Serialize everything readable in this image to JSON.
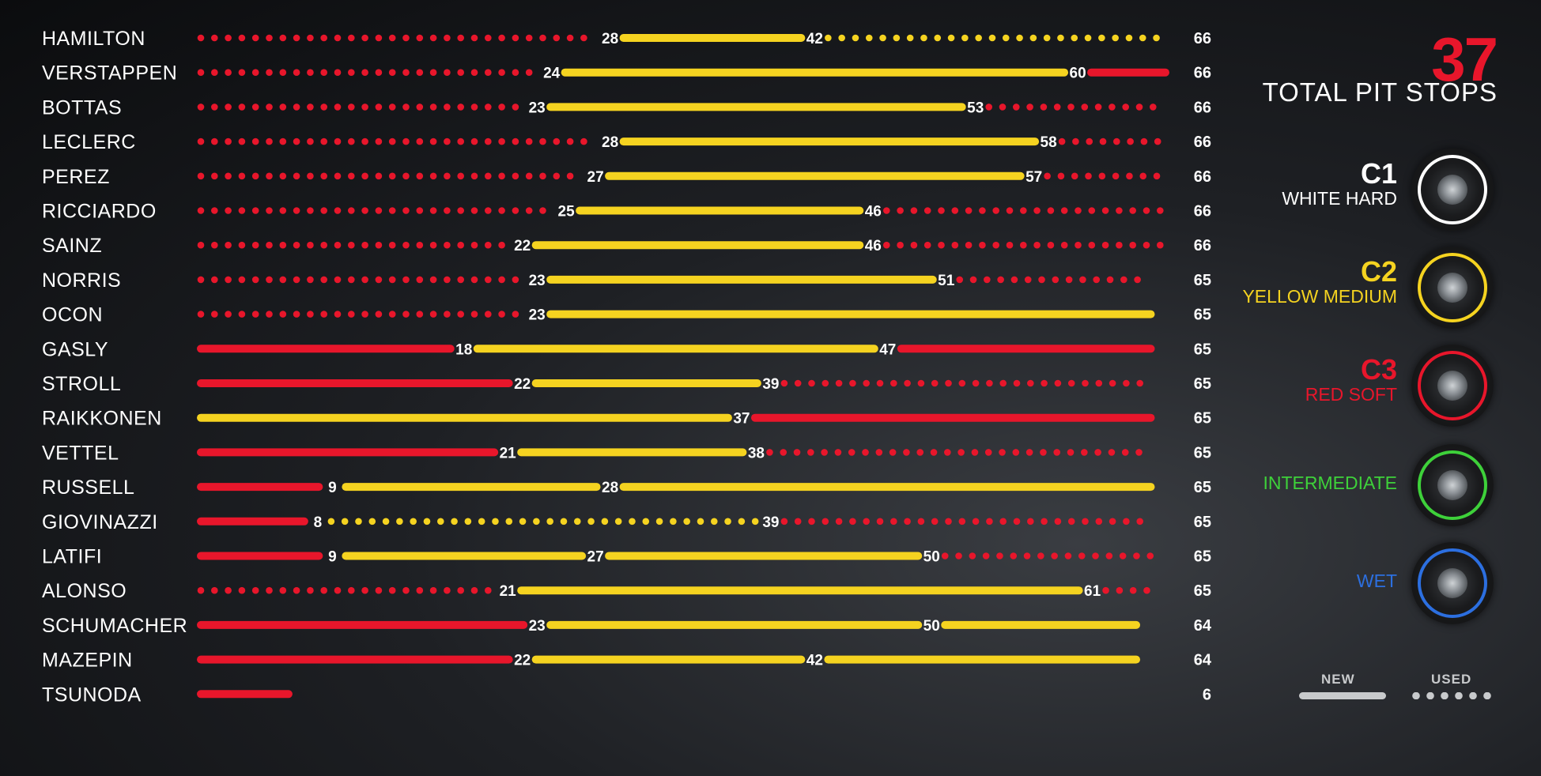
{
  "summary": {
    "total_pit_stops": "37",
    "total_label": "TOTAL PIT STOPS"
  },
  "compounds": [
    {
      "code": "C1",
      "name": "WHITE HARD",
      "color": "#ffffff",
      "icon": "white-hard-tyre-icon"
    },
    {
      "code": "C2",
      "name": "YELLOW MEDIUM",
      "color": "#f5d320",
      "icon": "yellow-medium-tyre-icon"
    },
    {
      "code": "C3",
      "name": "RED SOFT",
      "color": "#e8162b",
      "icon": "red-soft-tyre-icon"
    },
    {
      "code": "",
      "name": "INTERMEDIATE",
      "color": "#3ed13a",
      "icon": "green-intermediate-tyre-icon"
    },
    {
      "code": "",
      "name": "WET",
      "color": "#2c6fe0",
      "icon": "blue-wet-tyre-icon"
    }
  ],
  "legend": {
    "new_label": "NEW",
    "used_label": "USED"
  },
  "colors": {
    "red": "#e8162b",
    "yellow": "#f5d320",
    "white": "#ffffff"
  },
  "chart_data": {
    "type": "bar",
    "orientation": "horizontal-stacked-stints",
    "x_unit": "lap",
    "xlim": [
      0,
      66
    ],
    "drivers": [
      {
        "name": "HAMILTON",
        "total": 66,
        "stints": [
          {
            "compound": "red",
            "condition": "used",
            "start": 0,
            "end": 28
          },
          {
            "compound": "yellow",
            "condition": "new",
            "start": 28,
            "end": 42
          },
          {
            "compound": "yellow",
            "condition": "used",
            "start": 42,
            "end": 66
          }
        ]
      },
      {
        "name": "VERSTAPPEN",
        "total": 66,
        "stints": [
          {
            "compound": "red",
            "condition": "used",
            "start": 0,
            "end": 24
          },
          {
            "compound": "yellow",
            "condition": "new",
            "start": 24,
            "end": 60
          },
          {
            "compound": "red",
            "condition": "new",
            "start": 60,
            "end": 66
          }
        ]
      },
      {
        "name": "BOTTAS",
        "total": 66,
        "stints": [
          {
            "compound": "red",
            "condition": "used",
            "start": 0,
            "end": 23
          },
          {
            "compound": "yellow",
            "condition": "new",
            "start": 23,
            "end": 53
          },
          {
            "compound": "red",
            "condition": "used",
            "start": 53,
            "end": 66
          }
        ]
      },
      {
        "name": "LECLERC",
        "total": 66,
        "stints": [
          {
            "compound": "red",
            "condition": "used",
            "start": 0,
            "end": 28
          },
          {
            "compound": "yellow",
            "condition": "new",
            "start": 28,
            "end": 58
          },
          {
            "compound": "red",
            "condition": "used",
            "start": 58,
            "end": 66
          }
        ]
      },
      {
        "name": "PEREZ",
        "total": 66,
        "stints": [
          {
            "compound": "red",
            "condition": "used",
            "start": 0,
            "end": 27
          },
          {
            "compound": "yellow",
            "condition": "new",
            "start": 27,
            "end": 57
          },
          {
            "compound": "red",
            "condition": "used",
            "start": 57,
            "end": 66
          }
        ]
      },
      {
        "name": "RICCIARDO",
        "total": 66,
        "stints": [
          {
            "compound": "red",
            "condition": "used",
            "start": 0,
            "end": 25
          },
          {
            "compound": "yellow",
            "condition": "new",
            "start": 25,
            "end": 46
          },
          {
            "compound": "red",
            "condition": "used",
            "start": 46,
            "end": 66
          }
        ]
      },
      {
        "name": "SAINZ",
        "total": 66,
        "stints": [
          {
            "compound": "red",
            "condition": "used",
            "start": 0,
            "end": 22
          },
          {
            "compound": "yellow",
            "condition": "new",
            "start": 22,
            "end": 46
          },
          {
            "compound": "red",
            "condition": "used",
            "start": 46,
            "end": 66
          }
        ]
      },
      {
        "name": "NORRIS",
        "total": 65,
        "stints": [
          {
            "compound": "red",
            "condition": "used",
            "start": 0,
            "end": 23
          },
          {
            "compound": "yellow",
            "condition": "new",
            "start": 23,
            "end": 51
          },
          {
            "compound": "red",
            "condition": "used",
            "start": 51,
            "end": 65
          }
        ]
      },
      {
        "name": "OCON",
        "total": 65,
        "stints": [
          {
            "compound": "red",
            "condition": "used",
            "start": 0,
            "end": 23
          },
          {
            "compound": "yellow",
            "condition": "new",
            "start": 23,
            "end": 65
          }
        ]
      },
      {
        "name": "GASLY",
        "total": 65,
        "stints": [
          {
            "compound": "red",
            "condition": "new",
            "start": 0,
            "end": 18
          },
          {
            "compound": "yellow",
            "condition": "new",
            "start": 18,
            "end": 47
          },
          {
            "compound": "red",
            "condition": "new",
            "start": 47,
            "end": 65
          }
        ]
      },
      {
        "name": "STROLL",
        "total": 65,
        "stints": [
          {
            "compound": "red",
            "condition": "new",
            "start": 0,
            "end": 22
          },
          {
            "compound": "yellow",
            "condition": "new",
            "start": 22,
            "end": 39
          },
          {
            "compound": "red",
            "condition": "used",
            "start": 39,
            "end": 65
          }
        ]
      },
      {
        "name": "RAIKKONEN",
        "total": 65,
        "stints": [
          {
            "compound": "yellow",
            "condition": "new",
            "start": 0,
            "end": 37
          },
          {
            "compound": "red",
            "condition": "new",
            "start": 37,
            "end": 65
          }
        ]
      },
      {
        "name": "VETTEL",
        "total": 65,
        "stints": [
          {
            "compound": "red",
            "condition": "new",
            "start": 0,
            "end": 21
          },
          {
            "compound": "yellow",
            "condition": "new",
            "start": 21,
            "end": 38
          },
          {
            "compound": "red",
            "condition": "used",
            "start": 38,
            "end": 65
          }
        ]
      },
      {
        "name": "RUSSELL",
        "total": 65,
        "stints": [
          {
            "compound": "red",
            "condition": "new",
            "start": 0,
            "end": 9
          },
          {
            "compound": "yellow",
            "condition": "new",
            "start": 9,
            "end": 28
          },
          {
            "compound": "yellow",
            "condition": "new",
            "start": 28,
            "end": 65
          }
        ]
      },
      {
        "name": "GIOVINAZZI",
        "total": 65,
        "stints": [
          {
            "compound": "red",
            "condition": "new",
            "start": 0,
            "end": 8
          },
          {
            "compound": "yellow",
            "condition": "used",
            "start": 8,
            "end": 39
          },
          {
            "compound": "red",
            "condition": "used",
            "start": 39,
            "end": 65
          }
        ]
      },
      {
        "name": "LATIFI",
        "total": 65,
        "stints": [
          {
            "compound": "red",
            "condition": "new",
            "start": 0,
            "end": 9
          },
          {
            "compound": "yellow",
            "condition": "new",
            "start": 9,
            "end": 27
          },
          {
            "compound": "yellow",
            "condition": "new",
            "start": 27,
            "end": 50
          },
          {
            "compound": "red",
            "condition": "used",
            "start": 50,
            "end": 65
          }
        ]
      },
      {
        "name": "ALONSO",
        "total": 65,
        "stints": [
          {
            "compound": "red",
            "condition": "used",
            "start": 0,
            "end": 21
          },
          {
            "compound": "yellow",
            "condition": "new",
            "start": 21,
            "end": 61
          },
          {
            "compound": "red",
            "condition": "used",
            "start": 61,
            "end": 65
          }
        ]
      },
      {
        "name": "SCHUMACHER",
        "total": 64,
        "stints": [
          {
            "compound": "red",
            "condition": "new",
            "start": 0,
            "end": 23
          },
          {
            "compound": "yellow",
            "condition": "new",
            "start": 23,
            "end": 50
          },
          {
            "compound": "yellow",
            "condition": "new",
            "start": 50,
            "end": 64
          }
        ]
      },
      {
        "name": "MAZEPIN",
        "total": 64,
        "stints": [
          {
            "compound": "red",
            "condition": "new",
            "start": 0,
            "end": 22
          },
          {
            "compound": "yellow",
            "condition": "new",
            "start": 22,
            "end": 42
          },
          {
            "compound": "yellow",
            "condition": "new",
            "start": 42,
            "end": 64
          }
        ]
      },
      {
        "name": "TSUNODA",
        "total": 6,
        "stints": [
          {
            "compound": "red",
            "condition": "new",
            "start": 0,
            "end": 6
          }
        ]
      }
    ]
  }
}
